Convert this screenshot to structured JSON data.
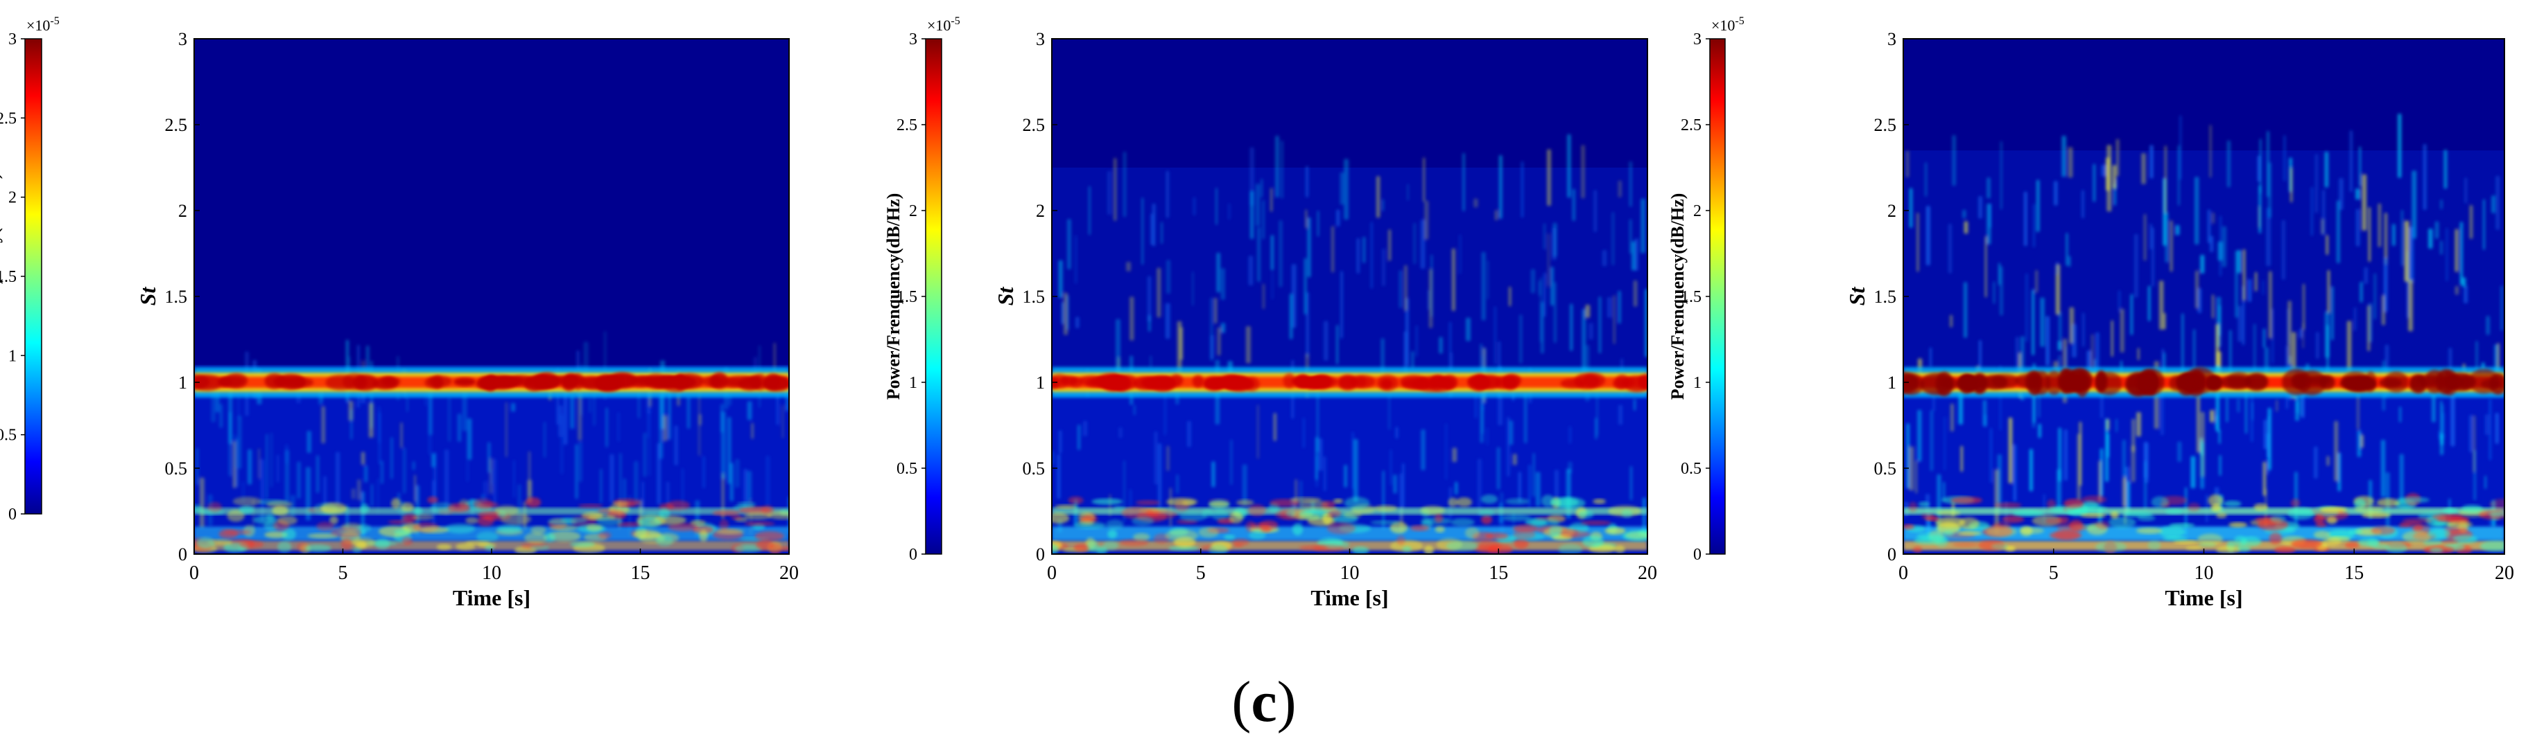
{
  "figure": {
    "caption_open": "(",
    "caption_label": "c",
    "caption_close": ")"
  },
  "chart_data": [
    {
      "type": "heatmap",
      "panel": 1,
      "title": "",
      "xlabel": "Time [s]",
      "ylabel": "St",
      "xlim": [
        0,
        20
      ],
      "ylim": [
        0,
        3
      ],
      "x_ticks": [
        "0",
        "5",
        "10",
        "15",
        "20"
      ],
      "y_ticks": [
        "0",
        "0.5",
        "1",
        "1.5",
        "2",
        "2.5",
        "3"
      ],
      "colorbar": {
        "label": "Power/Frenquency(dB/Hz)",
        "range": [
          0,
          3
        ],
        "ticks": [
          "0",
          "0.5",
          "1",
          "1.5",
          "2",
          "2.5",
          "3"
        ],
        "exponent_text": "×10",
        "exponent_power": "-5",
        "colormap": "jet"
      },
      "features": [
        {
          "name": "dominant band",
          "St": 1.0,
          "strength": "very high"
        },
        {
          "name": "secondary band",
          "St": 0.25,
          "strength": "medium"
        },
        {
          "name": "low-frequency band",
          "St": 0.05,
          "strength": "medium"
        },
        {
          "name": "intermittent activity",
          "St_range": [
            0.1,
            0.95
          ],
          "strength": "low"
        }
      ]
    },
    {
      "type": "heatmap",
      "panel": 2,
      "title": "",
      "xlabel": "Time [s]",
      "ylabel": "St",
      "xlim": [
        0,
        20
      ],
      "ylim": [
        0,
        3
      ],
      "x_ticks": [
        "0",
        "5",
        "10",
        "15",
        "20"
      ],
      "y_ticks": [
        "0",
        "0.5",
        "1",
        "1.5",
        "2",
        "2.5",
        "3"
      ],
      "colorbar": {
        "label": "Power/Frenquency(dB/Hz)",
        "range": [
          0,
          3
        ],
        "ticks": [
          "0",
          "0.5",
          "1",
          "1.5",
          "2",
          "2.5",
          "3"
        ],
        "exponent_text": "×10",
        "exponent_power": "-5",
        "colormap": "jet"
      },
      "features": [
        {
          "name": "dominant band",
          "St": 1.0,
          "strength": "very high"
        },
        {
          "name": "secondary band",
          "St": 0.25,
          "strength": "medium"
        },
        {
          "name": "low-frequency band",
          "St": 0.05,
          "strength": "medium"
        },
        {
          "name": "intermittent activity",
          "St_range": [
            0.1,
            2.1
          ],
          "strength": "low"
        }
      ]
    },
    {
      "type": "heatmap",
      "panel": 3,
      "title": "",
      "xlabel": "Time [s]",
      "ylabel": "St",
      "xlim": [
        0,
        20
      ],
      "ylim": [
        0,
        3
      ],
      "x_ticks": [
        "0",
        "5",
        "10",
        "15",
        "20"
      ],
      "y_ticks": [
        "0",
        "0.5",
        "1",
        "1.5",
        "2",
        "2.5",
        "3"
      ],
      "colorbar": {
        "label": "Power/Frenquency(dB/Hz)",
        "range": [
          0,
          3
        ],
        "ticks": [
          "0",
          "0.5",
          "1",
          "1.5",
          "2",
          "2.5",
          "3"
        ],
        "exponent_text": "×10",
        "exponent_power": "-5",
        "colormap": "jet"
      },
      "features": [
        {
          "name": "dominant band",
          "St": 1.0,
          "strength": "saturated"
        },
        {
          "name": "secondary band",
          "St": 0.25,
          "strength": "medium"
        },
        {
          "name": "low-frequency band",
          "St": 0.05,
          "strength": "high"
        },
        {
          "name": "intermittent activity",
          "St_range": [
            0.1,
            2.2
          ],
          "strength": "medium"
        }
      ]
    }
  ]
}
